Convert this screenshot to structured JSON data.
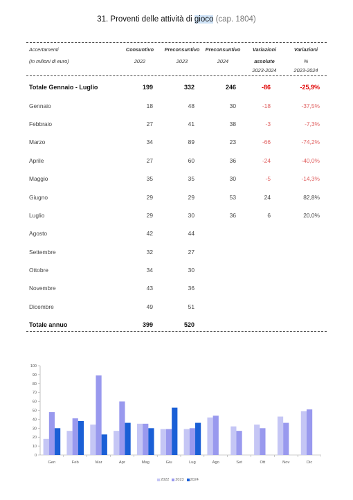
{
  "title": {
    "prefix": "31. Proventi delle attività di ",
    "highlight": "gioco",
    "cap": " (cap. 1804)"
  },
  "header": {
    "col0_line1": "Accertamenti",
    "col0_line2": "(in milioni di euro)",
    "col1_line1": "Consuntivo",
    "col1_line2": "2022",
    "col2_line1": "Preconsuntivo",
    "col2_line2": "2023",
    "col3_line1": "Preconsuntivo",
    "col3_line2": "2024",
    "col4_line1": "Variazioni",
    "col4_line2": "assolute",
    "col4_line3": "2023-2024",
    "col5_line1": "Variazioni",
    "col5_line2": "%",
    "col5_line3": "2023-2024"
  },
  "rows": [
    {
      "label": "Totale Gennaio - Luglio",
      "c2022": "199",
      "c2023": "332",
      "c2024": "246",
      "abs": "-86",
      "pct": "-25,9%",
      "total": true,
      "neg": true
    },
    {
      "label": "Gennaio",
      "c2022": "18",
      "c2023": "48",
      "c2024": "30",
      "abs": "-18",
      "pct": "-37,5%",
      "neg": true
    },
    {
      "label": "Febbraio",
      "c2022": "27",
      "c2023": "41",
      "c2024": "38",
      "abs": "-3",
      "pct": "-7,3%",
      "neg": true
    },
    {
      "label": "Marzo",
      "c2022": "34",
      "c2023": "89",
      "c2024": "23",
      "abs": "-66",
      "pct": "-74,2%",
      "neg": true
    },
    {
      "label": "Aprile",
      "c2022": "27",
      "c2023": "60",
      "c2024": "36",
      "abs": "-24",
      "pct": "-40,0%",
      "neg": true
    },
    {
      "label": "Maggio",
      "c2022": "35",
      "c2023": "35",
      "c2024": "30",
      "abs": "-5",
      "pct": "-14,3%",
      "neg": true
    },
    {
      "label": "Giugno",
      "c2022": "29",
      "c2023": "29",
      "c2024": "53",
      "abs": "24",
      "pct": "82,8%",
      "neg": false
    },
    {
      "label": "Luglio",
      "c2022": "29",
      "c2023": "30",
      "c2024": "36",
      "abs": "6",
      "pct": "20,0%",
      "neg": false
    },
    {
      "label": "Agosto",
      "c2022": "42",
      "c2023": "44",
      "c2024": "",
      "abs": "",
      "pct": "",
      "neg": false
    },
    {
      "label": "Settembre",
      "c2022": "32",
      "c2023": "27",
      "c2024": "",
      "abs": "",
      "pct": "",
      "neg": false
    },
    {
      "label": "Ottobre",
      "c2022": "34",
      "c2023": "30",
      "c2024": "",
      "abs": "",
      "pct": "",
      "neg": false
    },
    {
      "label": "Novembre",
      "c2022": "43",
      "c2023": "36",
      "c2024": "",
      "abs": "",
      "pct": "",
      "neg": false
    },
    {
      "label": "Dicembre",
      "c2022": "49",
      "c2023": "51",
      "c2024": "",
      "abs": "",
      "pct": "",
      "neg": false
    },
    {
      "label": "Totale annuo",
      "c2022": "399",
      "c2023": "520",
      "c2024": "",
      "abs": "",
      "pct": "",
      "total": true,
      "neg": false
    }
  ],
  "colors": {
    "s2022": "#c5c6f5",
    "s2023": "#9999ee",
    "s2024": "#1a5fd6",
    "negative": "#e06060",
    "negative_total": "#e00000"
  },
  "chart_data": {
    "type": "bar",
    "categories": [
      "Gen",
      "Feb",
      "Mar",
      "Apr",
      "Mag",
      "Giu",
      "Lug",
      "Ago",
      "Set",
      "Ott",
      "Nov",
      "Dic"
    ],
    "series": [
      {
        "name": "2022",
        "values": [
          18,
          27,
          34,
          27,
          35,
          29,
          29,
          42,
          32,
          34,
          43,
          49
        ]
      },
      {
        "name": "2023",
        "values": [
          48,
          41,
          89,
          60,
          35,
          29,
          30,
          44,
          27,
          30,
          36,
          51
        ]
      },
      {
        "name": "2024",
        "values": [
          30,
          38,
          23,
          36,
          30,
          53,
          36,
          null,
          null,
          null,
          null,
          null
        ]
      }
    ],
    "yticks": [
      "0",
      "10",
      "20",
      "30",
      "40",
      "50",
      "60",
      "70",
      "80",
      "90",
      "100"
    ],
    "ylim": [
      0,
      100
    ],
    "grid": false,
    "legend": "bottom-center"
  }
}
